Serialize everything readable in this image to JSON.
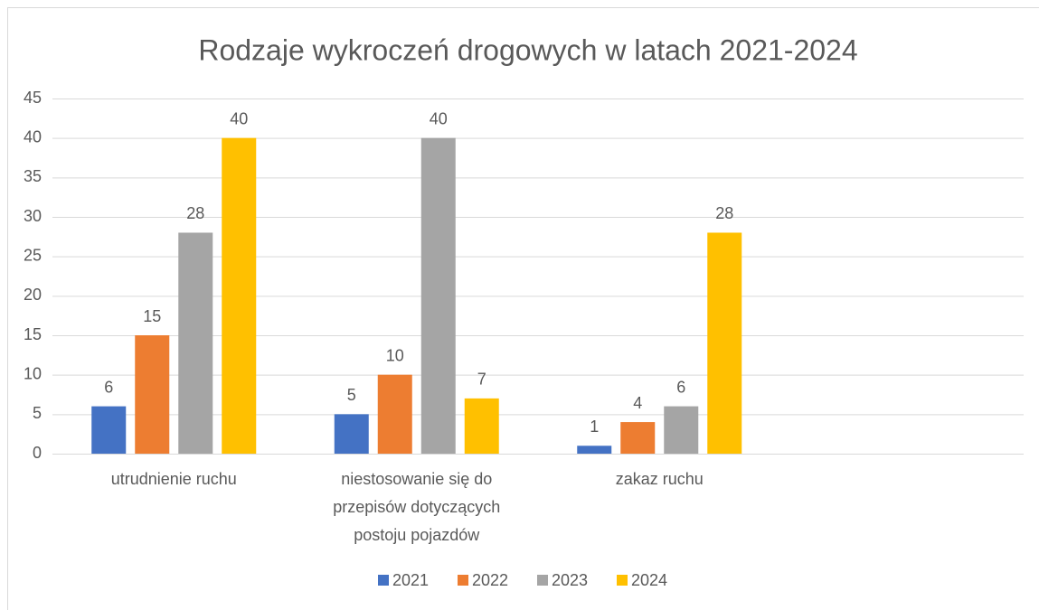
{
  "chart_data": {
    "type": "bar",
    "title": "Rodzaje wykroczeń drogowych w latach 2021-2024",
    "categories": [
      "utrudnienie ruchu",
      "niestosowanie się do przepisów dotyczących postoju pojazdów",
      "zakaz ruchu",
      null
    ],
    "series": [
      {
        "name": "2021",
        "color": "#4472c4",
        "values": [
          6,
          5,
          1,
          null
        ]
      },
      {
        "name": "2022",
        "color": "#ed7d31",
        "values": [
          15,
          10,
          4,
          null
        ]
      },
      {
        "name": "2023",
        "color": "#a5a5a5",
        "values": [
          28,
          40,
          6,
          null
        ]
      },
      {
        "name": "2024",
        "color": "#ffc000",
        "values": [
          40,
          7,
          28,
          null
        ]
      }
    ],
    "ylim": [
      0,
      45
    ],
    "yticks": [
      0,
      5,
      10,
      15,
      20,
      25,
      30,
      35,
      40,
      45
    ],
    "grid": true,
    "legend": "bottom"
  }
}
